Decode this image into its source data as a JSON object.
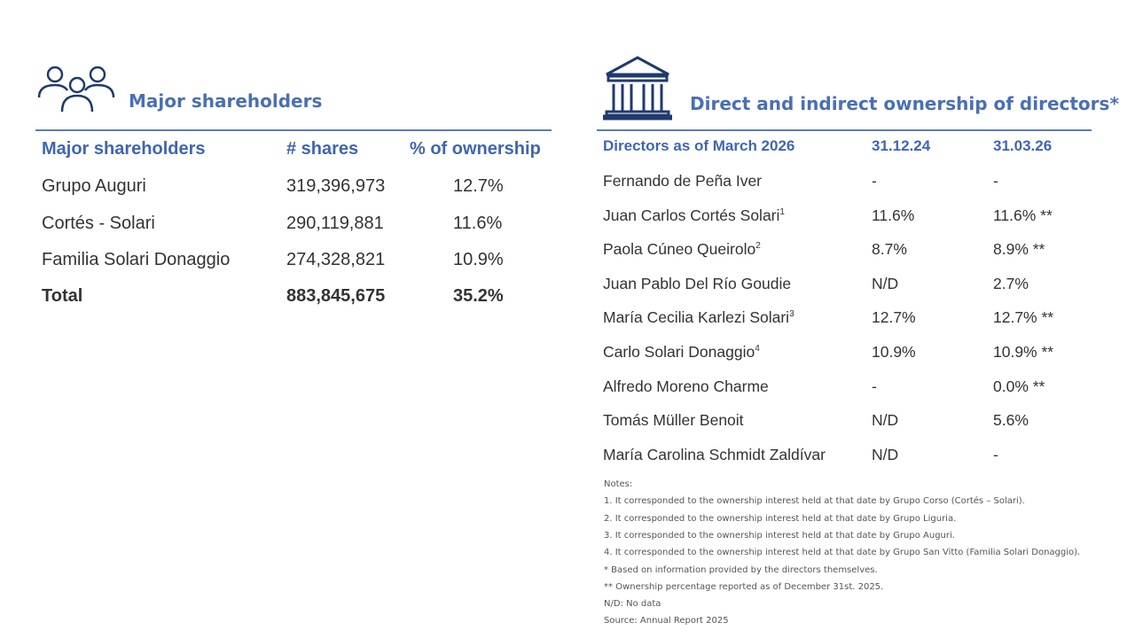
{
  "left": {
    "title": "Major shareholders",
    "headers": [
      "Major shareholders",
      "# shares",
      "% of ownership"
    ],
    "rows": [
      [
        "Grupo Auguri",
        "319,396,973",
        "12.7%"
      ],
      [
        "Cortés - Solari",
        "290,119,881",
        "11.6%"
      ],
      [
        "Familia Solari Donaggio",
        "274,328,821",
        "10.9%"
      ]
    ],
    "total": [
      "Total",
      "883,845,675",
      "35.2%"
    ]
  },
  "right": {
    "title": "Direct and indirect ownership of directors*",
    "headers": [
      "Directors as of March 2026",
      "31.12.24",
      "31.03.26"
    ],
    "rows": [
      {
        "name": "Fernando de Peña Iver",
        "note": "",
        "v1": "-",
        "v2": "-"
      },
      {
        "name": "Juan Carlos Cortés Solari",
        "note": "1",
        "v1": "11.6%",
        "v2": "11.6% **"
      },
      {
        "name": "Paola Cúneo Queirolo",
        "note": "2",
        "v1": "8.7%",
        "v2": "8.9% **"
      },
      {
        "name": "Juan Pablo Del Río Goudie",
        "note": "",
        "v1": "N/D",
        "v2": "2.7%"
      },
      {
        "name": "María Cecilia Karlezi Solari",
        "note": "3",
        "v1": "12.7%",
        "v2": "12.7% **"
      },
      {
        "name": "Carlo Solari Donaggio",
        "note": "4",
        "v1": "10.9%",
        "v2": "10.9% **"
      },
      {
        "name": "Alfredo Moreno Charme",
        "note": "",
        "v1": "-",
        "v2": "0.0% **"
      },
      {
        "name": "Tomás Müller Benoit",
        "note": "",
        "v1": "N/D",
        "v2": "5.6%"
      },
      {
        "name": "María Carolina Schmidt Zaldívar",
        "note": "",
        "v1": "N/D",
        "v2": "-"
      }
    ],
    "notes": [
      "Notes:",
      "1. It corresponded to the ownership interest held at that date by Grupo Corso (Cortés – Solari).",
      "2. It corresponded to the ownership interest held at that date by Grupo Liguria.",
      "3. It corresponded to the ownership interest held at that date by Grupo Auguri.",
      "4. It corresponded to the ownership interest held at that date by Grupo San Vitto (Familia Solari Donaggio).",
      "* Based on information provided by the directors themselves.",
      "** Ownership percentage reported as of December 31st. 2025.",
      "N/D: No data",
      "Source: Annual Report 2025"
    ]
  }
}
